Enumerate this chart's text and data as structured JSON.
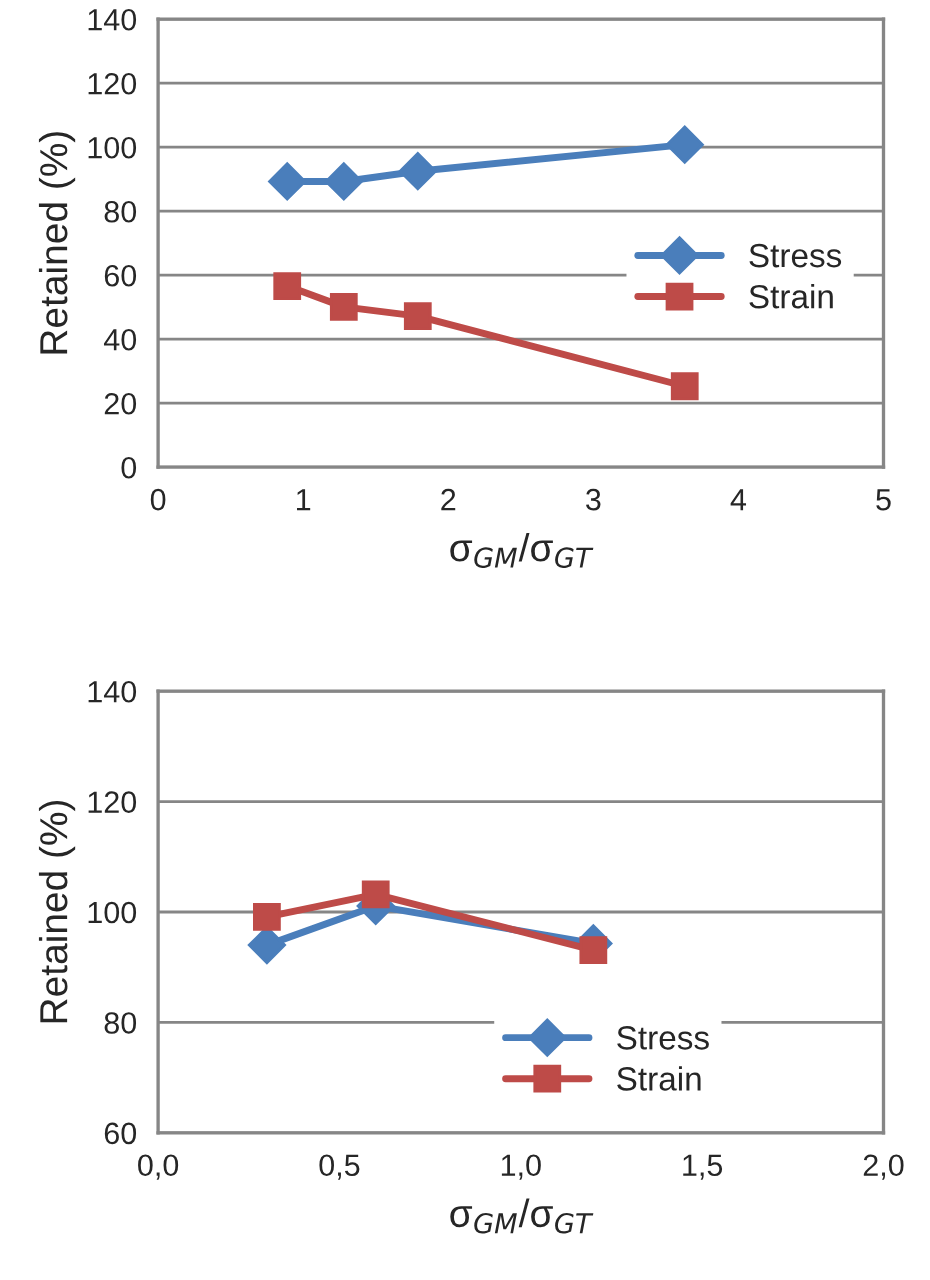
{
  "chart_data": [
    {
      "type": "line",
      "xlabel": "σ$_{GM}$/σ$_{GT}$",
      "ylabel": "Retained (%)",
      "xlim": [
        0,
        5
      ],
      "xticks": [
        0,
        1,
        2,
        3,
        4,
        5
      ],
      "ylim": [
        0,
        140
      ],
      "yticks": [
        0,
        20,
        40,
        60,
        80,
        100,
        120,
        140
      ],
      "grid": "y",
      "legend": "right",
      "series": [
        {
          "name": "Stress",
          "color": "#4a7ebb",
          "marker": "diamond",
          "x": [
            0.89,
            1.28,
            1.79,
            3.63
          ],
          "values": [
            89.3,
            89.3,
            92.5,
            100.8
          ]
        },
        {
          "name": "Strain",
          "color": "#be4b48",
          "marker": "square",
          "x": [
            0.89,
            1.28,
            1.79,
            3.63
          ],
          "values": [
            56.6,
            50.1,
            47.2,
            25.3
          ]
        }
      ]
    },
    {
      "type": "line",
      "xlabel": "σ$_{GM}$/σ$_{GT}$",
      "ylabel": "Retained (%)",
      "xlim": [
        0,
        2
      ],
      "xticks": [
        {
          "value": 0,
          "label": "0,0"
        },
        {
          "value": 0.5,
          "label": "0,5"
        },
        {
          "value": 1,
          "label": "1,0"
        },
        {
          "value": 1.5,
          "label": "1,5"
        },
        {
          "value": 2,
          "label": "2,0"
        }
      ],
      "ylim": [
        60,
        140
      ],
      "yticks": [
        60,
        80,
        100,
        120,
        140
      ],
      "grid": "y",
      "legend": "bottom",
      "series": [
        {
          "name": "Stress",
          "color": "#4a7ebb",
          "marker": "diamond",
          "x": [
            0.3,
            0.6,
            1.2
          ],
          "values": [
            94,
            101.1,
            94.3
          ]
        },
        {
          "name": "Strain",
          "color": "#be4b48",
          "marker": "square",
          "x": [
            0.3,
            0.6,
            1.2
          ],
          "values": [
            99.1,
            103.2,
            93.1
          ]
        }
      ]
    }
  ]
}
